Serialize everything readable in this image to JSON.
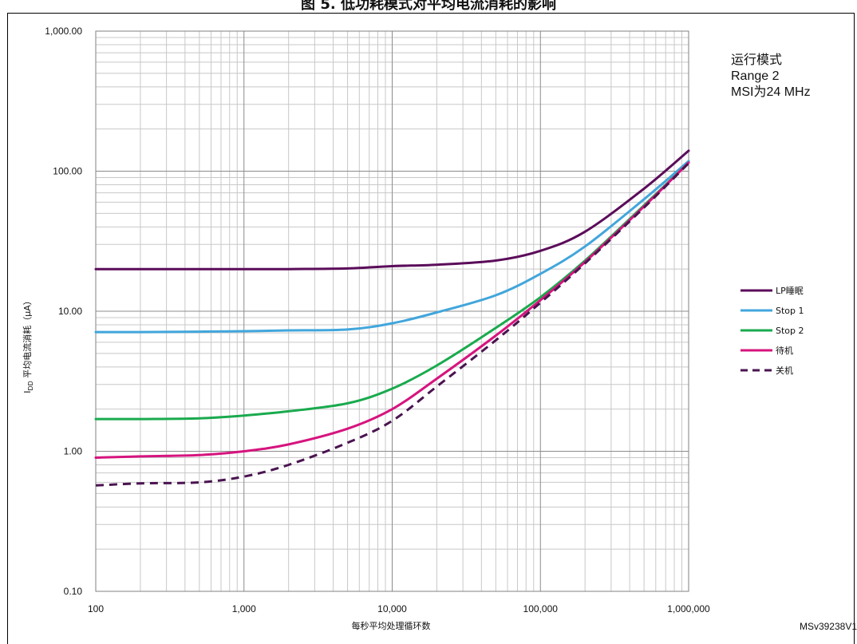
{
  "chart_data": {
    "type": "line",
    "title": "图 5. 低功耗模式对平均电流消耗的影响",
    "xlabel": "每秒平均处理循环数",
    "ylabel": "I_DD 平均电流消耗（µA）",
    "x_scale": "log",
    "y_scale": "log",
    "xlim": [
      100,
      1000000
    ],
    "ylim": [
      0.1,
      1000
    ],
    "grid": true,
    "x_tick_labels": [
      "100",
      "1,000",
      "10,000",
      "100,000",
      "1,000,000"
    ],
    "y_tick_labels": [
      "0.10",
      "1.00",
      "10.00",
      "100.00",
      "1,000.00"
    ],
    "legend_position": "right",
    "annotation": [
      "运行模式",
      "Range 2",
      "MSI为24 MHz"
    ],
    "reference_code": "MSv39238V1",
    "x": [
      100,
      200,
      500,
      1000,
      2000,
      5000,
      10000,
      20000,
      50000,
      100000,
      200000,
      500000,
      1000000
    ],
    "series": [
      {
        "name": "LP睡眠",
        "color": "#5b0c5a",
        "dash": false,
        "values": [
          20,
          20,
          20,
          20,
          20,
          20.2,
          21,
          21.5,
          23,
          27,
          37,
          75,
          140
        ]
      },
      {
        "name": "Stop 1",
        "color": "#41a6dc",
        "dash": false,
        "values": [
          7.1,
          7.1,
          7.15,
          7.2,
          7.3,
          7.4,
          8.2,
          9.8,
          13,
          18.5,
          29,
          63,
          118
        ]
      },
      {
        "name": "Stop 2",
        "color": "#1aaa4e",
        "dash": false,
        "values": [
          1.7,
          1.7,
          1.72,
          1.8,
          1.93,
          2.2,
          2.8,
          4.1,
          7.6,
          12.6,
          23,
          57,
          115
        ]
      },
      {
        "name": "待机",
        "color": "#d6147e",
        "dash": false,
        "values": [
          0.9,
          0.92,
          0.94,
          1.0,
          1.12,
          1.45,
          2.0,
          3.3,
          6.7,
          12,
          22.5,
          56,
          115
        ]
      },
      {
        "name": "关机",
        "color": "#4a1450",
        "dash": true,
        "values": [
          0.57,
          0.59,
          0.6,
          0.66,
          0.8,
          1.15,
          1.65,
          2.9,
          6.2,
          11.5,
          22,
          55,
          114
        ]
      }
    ]
  }
}
